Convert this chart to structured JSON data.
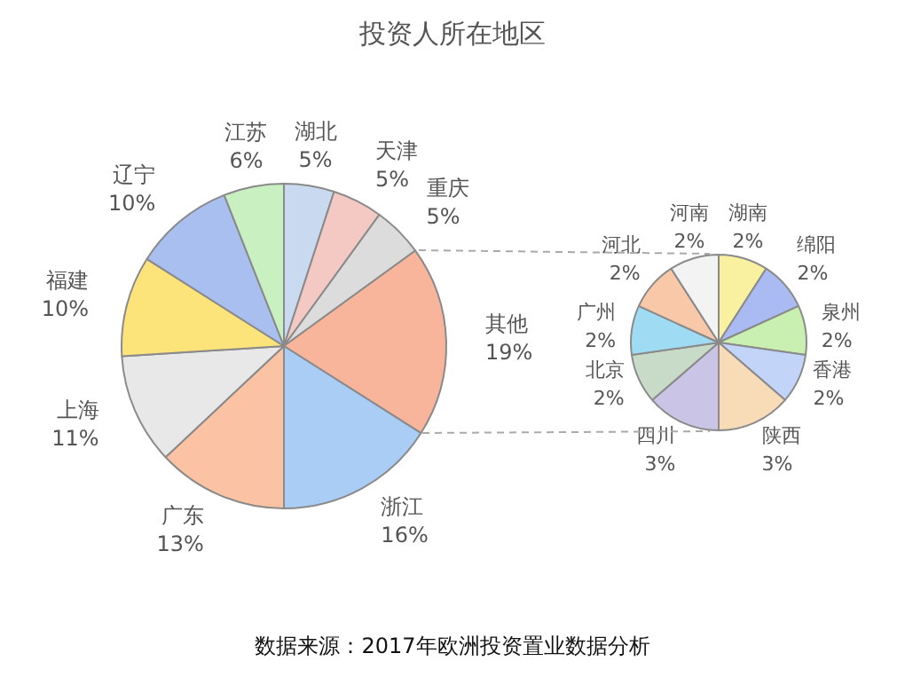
{
  "chart_data": [
    {
      "type": "pie",
      "title": "投资人所在地区",
      "annotations": [
        "数据来源：2017年欧洲投资置业数据分析"
      ],
      "categories": [
        "湖北",
        "天津",
        "重庆",
        "其他",
        "浙江",
        "广东",
        "上海",
        "福建",
        "辽宁",
        "江苏"
      ],
      "values": [
        5,
        5,
        5,
        19,
        16,
        13,
        11,
        10,
        10,
        6
      ],
      "value_labels": [
        "5%",
        "5%",
        "5%",
        "19%",
        "16%",
        "13%",
        "11%",
        "10%",
        "10%",
        "6%"
      ],
      "colors": [
        "#c9d9f0",
        "#f4c9c4",
        "#dcdcdc",
        "#f9b49c",
        "#a9cdf5",
        "#fbc3a3",
        "#e8e8e8",
        "#fde47a",
        "#a9bff0",
        "#c8f0c0"
      ]
    },
    {
      "type": "pie",
      "categories": [
        "湖南",
        "绵阳",
        "泉州",
        "香港",
        "陕西",
        "四川",
        "北京",
        "广州",
        "河北",
        "河南"
      ],
      "values": [
        2,
        2,
        2,
        2,
        3,
        3,
        2,
        2,
        2,
        2
      ],
      "value_labels": [
        "2%",
        "2%",
        "2%",
        "2%",
        "3%",
        "3%",
        "2%",
        "2%",
        "2%",
        "2%"
      ],
      "colors": [
        "#f9f0a0",
        "#a9bbf2",
        "#c9f0b0",
        "#c2d4f7",
        "#f8dcb8",
        "#cac4e6",
        "#c8dbc8",
        "#9fdcf3",
        "#f9c8a8",
        "#f3f3f3"
      ]
    }
  ]
}
